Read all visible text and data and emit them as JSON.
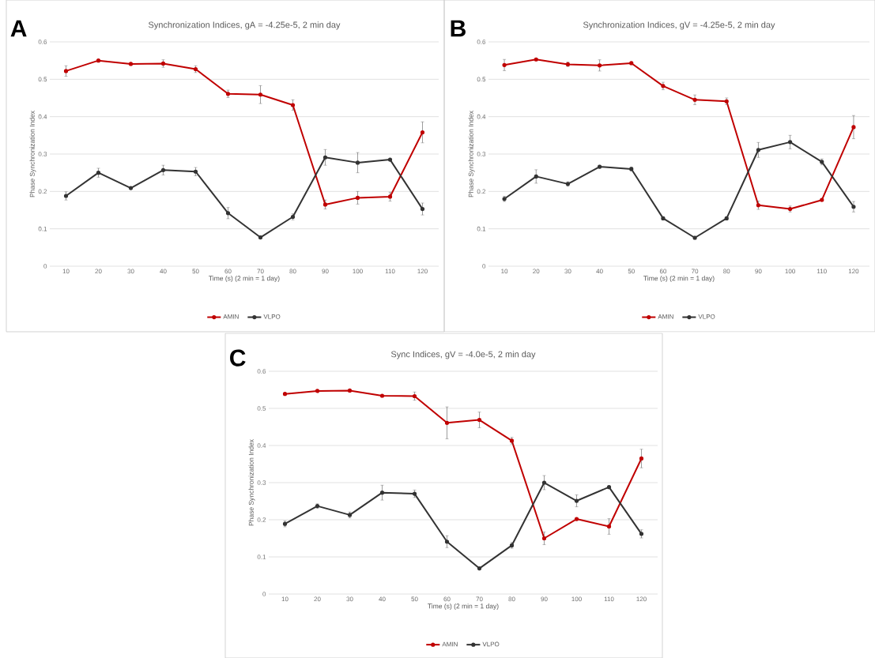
{
  "chart_data": [
    {
      "type": "line",
      "title": "Synchronization Indices, gA = -4.25e-5, 2 min day",
      "xlabel": "Time (s) (2 min = 1 day)",
      "ylabel": "Phase Synchronization Index",
      "annotations": [
        "A"
      ],
      "categories": [
        "10",
        "20",
        "30",
        "40",
        "50",
        "60",
        "70",
        "80",
        "90",
        "100",
        "110",
        "120"
      ],
      "series": [
        {
          "name": "AMIN",
          "color": "#c00000",
          "values": [
            0.522,
            0.55,
            0.541,
            0.542,
            0.527,
            0.461,
            0.459,
            0.431,
            0.165,
            0.183,
            0.186,
            0.358
          ],
          "errors": [
            0.014,
            null,
            null,
            0.01,
            0.009,
            0.01,
            0.024,
            0.014,
            0.012,
            0.017,
            0.012,
            0.028
          ]
        },
        {
          "name": "VLPO",
          "color": "#333333",
          "values": [
            0.188,
            0.25,
            0.209,
            0.257,
            0.253,
            0.142,
            0.077,
            0.132,
            0.291,
            0.277,
            0.285,
            0.153
          ],
          "errors": [
            0.011,
            0.012,
            null,
            0.013,
            0.011,
            0.015,
            0.004,
            0.008,
            0.021,
            0.027,
            null,
            0.016
          ]
        }
      ],
      "ylim": [
        0,
        0.6
      ],
      "yticks": [
        0,
        0.1,
        0.2,
        0.3,
        0.4,
        0.5,
        0.6
      ],
      "grid": "y",
      "legend": "bottom",
      "marker": "circle"
    },
    {
      "type": "line",
      "title": "Synchronization Indices, gV = -4.25e-5, 2 min day",
      "xlabel": "Time (s) (2 min = 1 day)",
      "ylabel": "Phase Synchronization Index",
      "annotations": [
        "B"
      ],
      "categories": [
        "10",
        "20",
        "30",
        "40",
        "50",
        "60",
        "70",
        "80",
        "90",
        "100",
        "110",
        "120"
      ],
      "series": [
        {
          "name": "AMIN",
          "color": "#c00000",
          "values": [
            0.538,
            0.553,
            0.54,
            0.537,
            0.543,
            0.482,
            0.445,
            0.441,
            0.163,
            0.153,
            0.177,
            0.372
          ],
          "errors": [
            0.015,
            null,
            0.006,
            0.015,
            null,
            0.01,
            0.013,
            0.009,
            0.011,
            0.008,
            0.002,
            0.031
          ]
        },
        {
          "name": "VLPO",
          "color": "#333333",
          "values": [
            0.18,
            0.24,
            0.22,
            0.266,
            0.26,
            0.128,
            0.076,
            0.128,
            0.311,
            0.332,
            0.279,
            0.159
          ],
          "errors": [
            0.007,
            0.018,
            0.006,
            0.004,
            0.005,
            0.004,
            0.004,
            0.004,
            0.02,
            0.018,
            0.008,
            0.014
          ]
        }
      ],
      "ylim": [
        0,
        0.6
      ],
      "yticks": [
        0,
        0.1,
        0.2,
        0.3,
        0.4,
        0.5,
        0.6
      ],
      "grid": "y",
      "legend": "bottom",
      "marker": "circle"
    },
    {
      "type": "line",
      "title": "Sync Indices, gV = -4.0e-5, 2 min day",
      "xlabel": "Time (s) (2 min = 1 day)",
      "ylabel": "Phase Synchronization Index",
      "annotations": [
        "C"
      ],
      "categories": [
        "10",
        "20",
        "30",
        "40",
        "50",
        "60",
        "70",
        "80",
        "90",
        "100",
        "110",
        "120"
      ],
      "series": [
        {
          "name": "AMIN",
          "color": "#c00000",
          "values": [
            0.539,
            0.547,
            0.548,
            0.534,
            0.533,
            0.461,
            0.469,
            0.413,
            0.15,
            0.202,
            0.182,
            0.365
          ],
          "errors": [
            0.002,
            null,
            0.002,
            null,
            0.011,
            0.043,
            0.021,
            0.009,
            0.017,
            0.002,
            0.021,
            0.025
          ]
        },
        {
          "name": "VLPO",
          "color": "#333333",
          "values": [
            0.189,
            0.237,
            0.213,
            0.273,
            0.27,
            0.141,
            0.069,
            0.131,
            0.3,
            0.251,
            0.288,
            0.162
          ],
          "errors": [
            0.008,
            0.006,
            0.008,
            0.02,
            0.01,
            0.016,
            null,
            0.008,
            0.019,
            0.016,
            null,
            0.011
          ]
        }
      ],
      "ylim": [
        0,
        0.6
      ],
      "yticks": [
        0,
        0.1,
        0.2,
        0.3,
        0.4,
        0.5,
        0.6
      ],
      "grid": "y",
      "legend": "bottom",
      "marker": "circle"
    }
  ]
}
